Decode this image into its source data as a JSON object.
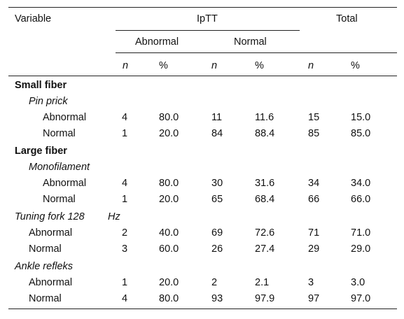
{
  "header": {
    "variable": "Variable",
    "iptt": "IpTT",
    "total": "Total",
    "abnormal": "Abnormal",
    "normal": "Normal",
    "n": "n",
    "pct": "%"
  },
  "sections": {
    "small_fiber": {
      "title": "Small fiber",
      "test": "Pin prick",
      "rows": [
        {
          "label": "Abnormal",
          "a_n": "4",
          "a_pct": "80.0",
          "n_n": "11",
          "n_pct": "11.6",
          "t_n": "15",
          "t_pct": "15.0"
        },
        {
          "label": "Normal",
          "a_n": "1",
          "a_pct": "20.0",
          "n_n": "84",
          "n_pct": "88.4",
          "t_n": "85",
          "t_pct": "85.0"
        }
      ]
    },
    "large_fiber": {
      "title": "Large fiber",
      "test": "Monofilament",
      "rows": [
        {
          "label": "Abnormal",
          "a_n": "4",
          "a_pct": "80.0",
          "n_n": "30",
          "n_pct": "31.6",
          "t_n": "34",
          "t_pct": "34.0"
        },
        {
          "label": "Normal",
          "a_n": "1",
          "a_pct": "20.0",
          "n_n": "65",
          "n_pct": "68.4",
          "t_n": "66",
          "t_pct": "66.0"
        }
      ]
    },
    "tuning_fork": {
      "title": "Tuning fork 128",
      "unit": "Hz",
      "rows": [
        {
          "label": "Abnormal",
          "a_n": "2",
          "a_pct": "40.0",
          "n_n": "69",
          "n_pct": "72.6",
          "t_n": "71",
          "t_pct": "71.0"
        },
        {
          "label": "Normal",
          "a_n": "3",
          "a_pct": "60.0",
          "n_n": "26",
          "n_pct": "27.4",
          "t_n": "29",
          "t_pct": "29.0"
        }
      ]
    },
    "ankle": {
      "title": "Ankle refleks",
      "rows": [
        {
          "label": "Abnormal",
          "a_n": "1",
          "a_pct": "20.0",
          "n_n": "2",
          "n_pct": "2.1",
          "t_n": "3",
          "t_pct": "3.0"
        },
        {
          "label": "Normal",
          "a_n": "4",
          "a_pct": "80.0",
          "n_n": "93",
          "n_pct": "97.9",
          "t_n": "97",
          "t_pct": "97.0"
        }
      ]
    }
  }
}
